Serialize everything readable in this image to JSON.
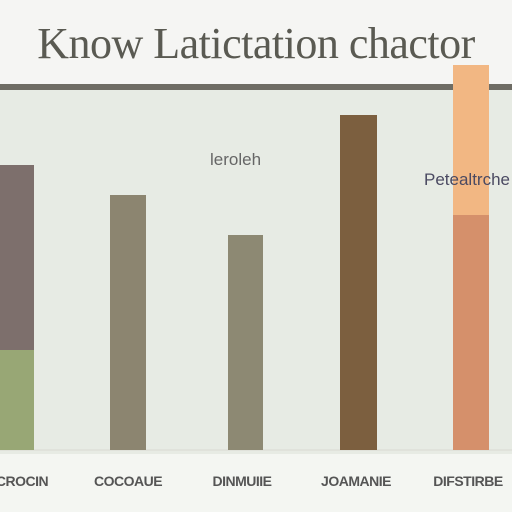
{
  "chart_data": {
    "type": "bar",
    "stacked": true,
    "title": "Know Latictation chactor",
    "categories": [
      "CROCIN",
      "COCOAUE",
      "DINMUIIE",
      "JOAMANIE",
      "DIFSTIRBE"
    ],
    "series": [
      {
        "name": "",
        "values": [
          100,
          255,
          215,
          335,
          235
        ]
      },
      {
        "name": "",
        "values": [
          185,
          0,
          0,
          0,
          150
        ]
      }
    ],
    "segment_colors": [
      [
        "#98a775",
        "#7d6f6c"
      ],
      [
        "#8c8570",
        "#8c8570"
      ],
      [
        "#8d8973",
        "#8d8973"
      ],
      [
        "#7c5f3f",
        "#7c5f3f"
      ],
      [
        "#d5906b",
        "#f2b783"
      ]
    ],
    "ylim": [
      0,
      370
    ],
    "annotations": [
      "leroleh",
      "Petealtrche"
    ],
    "grid": false,
    "legend": "none"
  }
}
